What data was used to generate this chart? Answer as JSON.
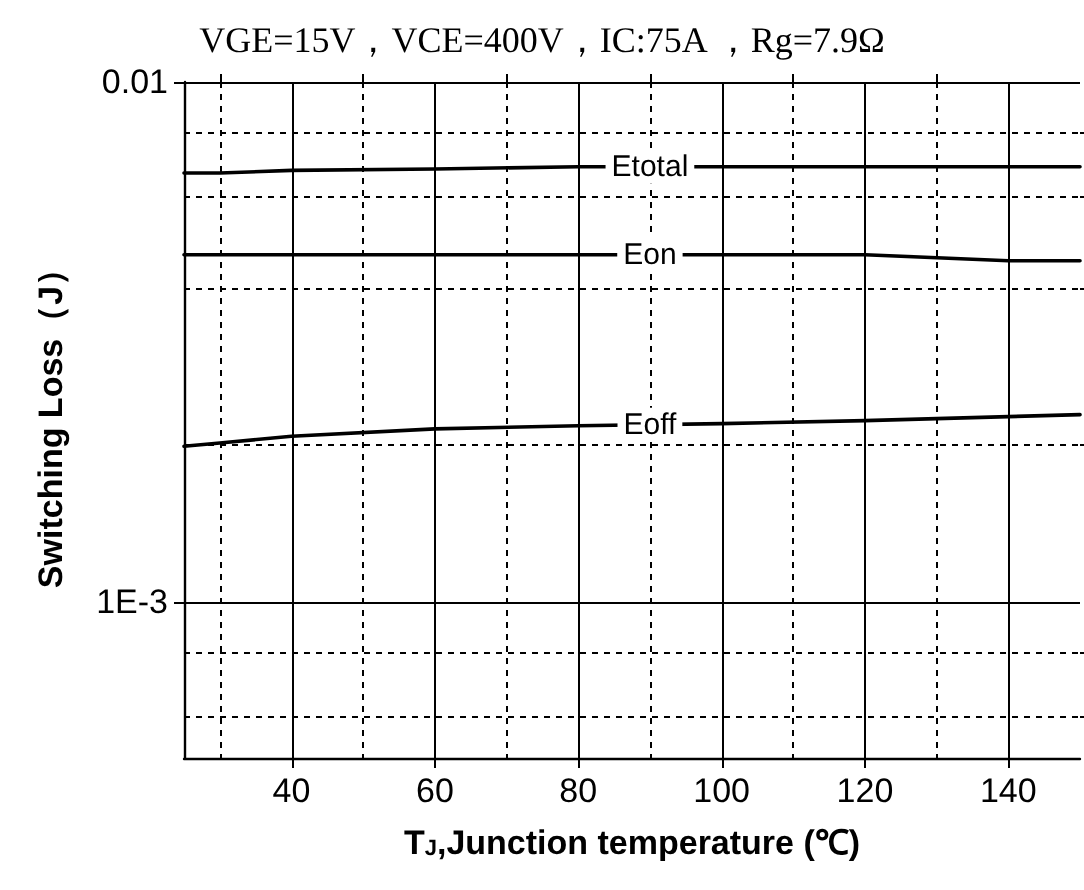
{
  "chart_data": {
    "type": "line",
    "title": "VGE=15V，VCE=400V，IC:75A ，Rg=7.9Ω",
    "xlabel": "T$_{J}$,Junction temperature (℃)",
    "ylabel": "Switching Loss（J）",
    "x": [
      25,
      30,
      40,
      60,
      80,
      100,
      120,
      140,
      150
    ],
    "series": [
      {
        "name": "Etotal",
        "color": "#000000",
        "values": [
          0.00668,
          0.00668,
          0.00676,
          0.0068,
          0.00687,
          0.00687,
          0.00687,
          0.00687,
          0.00687
        ]
      },
      {
        "name": "Eon",
        "color": "#000000",
        "values": [
          0.00465,
          0.00465,
          0.00465,
          0.00465,
          0.00465,
          0.00465,
          0.00465,
          0.00453,
          0.00453
        ]
      },
      {
        "name": "Eoff",
        "color": "#000000",
        "values": [
          0.00199,
          0.00202,
          0.00208,
          0.00215,
          0.00218,
          0.0022,
          0.00223,
          0.00227,
          0.00229
        ]
      }
    ],
    "log": "y",
    "xlim": [
      25,
      150
    ],
    "ylim": [
      0.0005,
      0.01
    ],
    "xticks": [
      {
        "value": 30,
        "label": null
      },
      40,
      {
        "value": 50,
        "label": null
      },
      60,
      {
        "value": 70,
        "label": null
      },
      80,
      {
        "value": 90,
        "label": null
      },
      100,
      {
        "value": 110,
        "label": null
      },
      120,
      {
        "value": 130,
        "label": null
      },
      140
    ],
    "yticks": [
      {
        "value": 0.0006,
        "label": null
      },
      {
        "value": 0.0008,
        "label": null
      },
      {
        "value": 0.001,
        "label": "1E-3"
      },
      {
        "value": 0.002,
        "label": null
      },
      {
        "value": 0.004,
        "label": null
      },
      {
        "value": 0.006,
        "label": null
      },
      {
        "value": 0.008,
        "label": null
      },
      0.01
    ],
    "grid": true,
    "legend": false,
    "marker": "none",
    "line_style": "solid"
  }
}
